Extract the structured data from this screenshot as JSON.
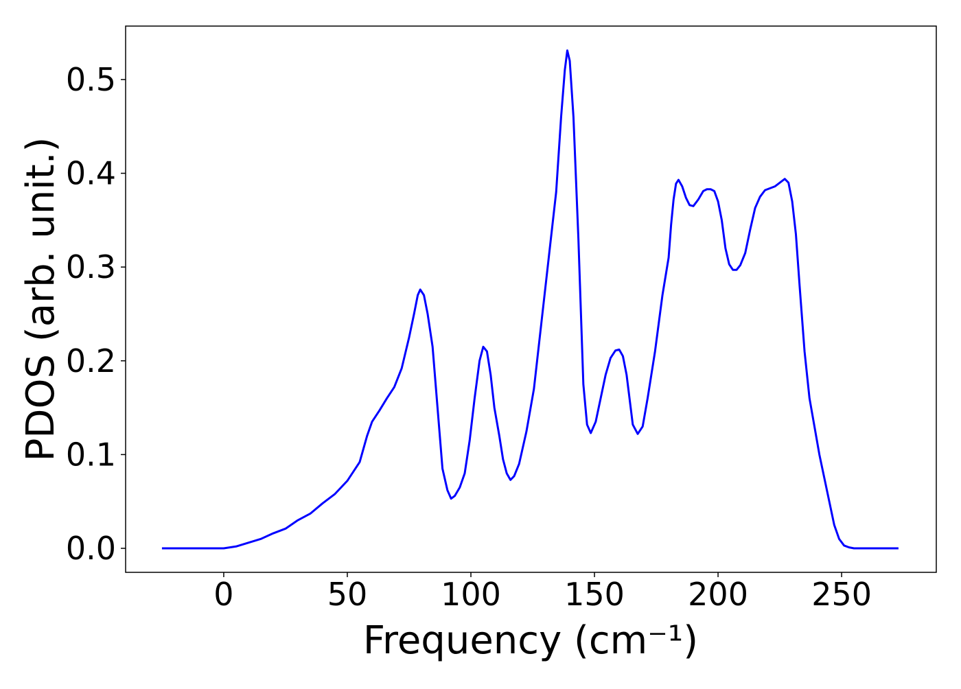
{
  "chart_data": {
    "type": "line",
    "x_label": "Frequency (cm⁻¹)",
    "y_label": "PDOS (arb. unit.)",
    "xlim": [
      -39.7,
      288.3
    ],
    "ylim": [
      -0.0256,
      0.557
    ],
    "xticks": [
      0,
      50,
      100,
      150,
      200,
      250
    ],
    "yticks": [
      {
        "value": 0,
        "label": "0.0"
      },
      0.1,
      0.2,
      0.3,
      0.4,
      0.5
    ],
    "series": [
      {
        "name": "PDOS",
        "color": "#0000ff",
        "x": [
          -25,
          0,
          5,
          10,
          15,
          20,
          25,
          30,
          35,
          40,
          45,
          50,
          55,
          58,
          60,
          63,
          66,
          69,
          72,
          75,
          77,
          78.5,
          79.5,
          81,
          82.5,
          84.5,
          86.5,
          88.5,
          90.5,
          92,
          93.5,
          95.5,
          97.5,
          99.5,
          101.5,
          103.5,
          105,
          106.5,
          108,
          109.5,
          111.5,
          113,
          114.5,
          116,
          117.5,
          119.5,
          122.5,
          125.5,
          128.5,
          131.5,
          134.5,
          136.5,
          138,
          139,
          140,
          141.5,
          143.5,
          145.5,
          147,
          148.5,
          150.5,
          152.5,
          154.5,
          156.5,
          158.5,
          160,
          161.5,
          163,
          165.5,
          167.5,
          169.5,
          171.5,
          174.5,
          177.5,
          180,
          181,
          182,
          183,
          184,
          185.5,
          187,
          188.5,
          190,
          192,
          194,
          195.5,
          197,
          198.5,
          200,
          201.5,
          203,
          204.5,
          206,
          207.5,
          209,
          211,
          213,
          215,
          217,
          219,
          221,
          223,
          225,
          227,
          228.5,
          230,
          231.5,
          233,
          235,
          237,
          239,
          241,
          243,
          245,
          247,
          249,
          251,
          253,
          255,
          273
        ],
        "values": [
          0,
          0,
          0.002,
          0.006,
          0.01,
          0.016,
          0.021,
          0.03,
          0.037,
          0.048,
          0.058,
          0.072,
          0.092,
          0.12,
          0.135,
          0.147,
          0.16,
          0.172,
          0.192,
          0.225,
          0.25,
          0.27,
          0.276,
          0.27,
          0.25,
          0.215,
          0.15,
          0.085,
          0.062,
          0.053,
          0.056,
          0.065,
          0.08,
          0.115,
          0.16,
          0.2,
          0.215,
          0.21,
          0.185,
          0.15,
          0.12,
          0.095,
          0.08,
          0.073,
          0.077,
          0.09,
          0.125,
          0.17,
          0.24,
          0.31,
          0.38,
          0.46,
          0.51,
          0.531,
          0.52,
          0.46,
          0.33,
          0.175,
          0.132,
          0.123,
          0.135,
          0.16,
          0.185,
          0.203,
          0.211,
          0.212,
          0.205,
          0.185,
          0.132,
          0.122,
          0.13,
          0.16,
          0.21,
          0.27,
          0.31,
          0.345,
          0.372,
          0.389,
          0.393,
          0.386,
          0.374,
          0.366,
          0.365,
          0.372,
          0.381,
          0.383,
          0.383,
          0.381,
          0.37,
          0.35,
          0.32,
          0.303,
          0.297,
          0.297,
          0.302,
          0.315,
          0.34,
          0.363,
          0.375,
          0.382,
          0.384,
          0.386,
          0.39,
          0.394,
          0.39,
          0.37,
          0.335,
          0.28,
          0.21,
          0.16,
          0.13,
          0.1,
          0.075,
          0.05,
          0.025,
          0.01,
          0.003,
          0.001,
          0,
          0
        ]
      }
    ]
  }
}
